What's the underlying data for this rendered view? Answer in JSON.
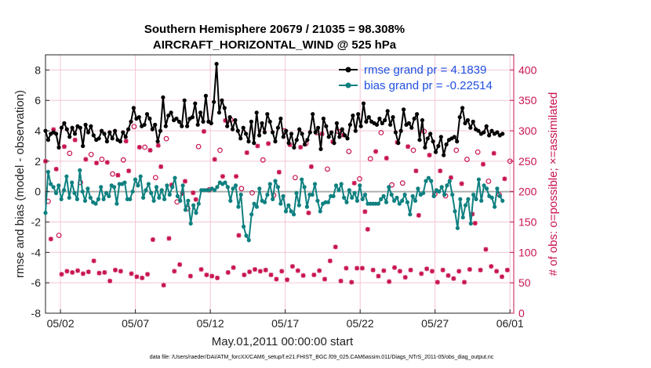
{
  "chart_data": {
    "type": "line",
    "title": "Southern Hemisphere 20679 / 21035 = 98.308%",
    "subtitle": "AIRCRAFT_HORIZONTAL_WIND @ 525 hPa",
    "xlabel": "May.01,2011 00:00:00 start",
    "ylabel": "rmse and bias (model - observation)",
    "y2label": "# of obs: o=possible; ×=assimilated",
    "footnote": "data file: /Users/raeder/DAI/ATM_forcXX/CAM6_setup/f.e21.FHIST_BGC.f09_025.CAM6assim.011/Diags_NTrS_2011-05/obs_diag_output.nc",
    "x_range": [
      0.5,
      31.75
    ],
    "ylim": [
      -8,
      9
    ],
    "y2lim": [
      0,
      425
    ],
    "x_ticks": [
      1.5,
      6.5,
      11.5,
      16.5,
      21.5,
      26.5,
      31.5
    ],
    "x_tick_labels": [
      "05/02",
      "05/07",
      "05/12",
      "05/17",
      "05/22",
      "05/27",
      "06/01"
    ],
    "y_ticks": [
      -8,
      -6,
      -4,
      -2,
      0,
      2,
      4,
      6,
      8
    ],
    "y_tick_labels": [
      "-8",
      "-6",
      "-4",
      "-2",
      "0",
      "2",
      "4",
      "6",
      "8"
    ],
    "y2_ticks": [
      0,
      50,
      100,
      150,
      200,
      250,
      300,
      350,
      400
    ],
    "y2_tick_labels": [
      "0",
      "50",
      "100",
      "150",
      "200",
      "250",
      "300",
      "350",
      "400"
    ],
    "legend_position": "top-right",
    "colors": {
      "rmse": "#000000",
      "bias": "#0f8080",
      "obs": "#c8144f",
      "zero": "#b0b0b0",
      "grid": "#f3c4d4",
      "legend_text": "#1f4fe0"
    },
    "series": [
      {
        "name": "rmse grand pr = 4.1839",
        "key": "rmse",
        "values": [
          4.0,
          3.4,
          3.8,
          3.9,
          3.8,
          2.9,
          4.2,
          4.5,
          4.1,
          3.6,
          4.2,
          3.8,
          4.3,
          4.2,
          3.0,
          4.4,
          3.9,
          4.3,
          3.7,
          3.4,
          3.5,
          4.0,
          3.8,
          3.3,
          3.9,
          3.5,
          4.0,
          3.4,
          3.3,
          3.9,
          3.6,
          4.1,
          4.6,
          5.5,
          4.8,
          4.9,
          4.3,
          4.4,
          5.1,
          4.8,
          4.1,
          4.4,
          3.3,
          4.0,
          6.2,
          4.3,
          5.0,
          5.2,
          4.7,
          4.8,
          4.6,
          4.3,
          6.0,
          4.3,
          4.8,
          4.9,
          5.8,
          4.4,
          5.2,
          4.6,
          6.3,
          4.6,
          4.5,
          5.9,
          8.4,
          5.2,
          6.0,
          5.5,
          4.3,
          4.9,
          4.1,
          4.7,
          4.0,
          3.5,
          4.2,
          3.8,
          3.3,
          4.6,
          3.2,
          5.2,
          3.7,
          4.5,
          3.9,
          5.1,
          4.6,
          3.9,
          3.3,
          4.2,
          4.8,
          3.6,
          4.0,
          3.2,
          3.8,
          2.9,
          3.4,
          4.1,
          3.8,
          3.1,
          3.4,
          3.9,
          5.1,
          3.9,
          4.2,
          2.8,
          4.8,
          4.3,
          3.6,
          3.9,
          3.2,
          4.5,
          3.6,
          4.1,
          3.7,
          3.5,
          4.4,
          5.0,
          4.0,
          5.1,
          4.3,
          5.8,
          4.6,
          4.9,
          4.6,
          4.5,
          4.4,
          4.8,
          4.5,
          4.7,
          5.3,
          4.4,
          4.9,
          3.9,
          3.2,
          4.0,
          5.4,
          4.4,
          4.5,
          4.2,
          4.8,
          5.1,
          3.4,
          4.7,
          2.9,
          3.5,
          3.8,
          3.3,
          2.6,
          3.0,
          3.6,
          2.4,
          3.1,
          3.4,
          3.5,
          3.6,
          3.3,
          4.9,
          5.5,
          4.5,
          4.7,
          4.2,
          4.6,
          4.1,
          4.0,
          3.8,
          3.9,
          4.3,
          3.7,
          4.0,
          3.8,
          3.9,
          3.7,
          3.8
        ]
      },
      {
        "name": "bias grand pr = -0.22514",
        "key": "bias",
        "values": [
          -1.4,
          1.3,
          0.5,
          0.3,
          -0.1,
          0.4,
          -0.5,
          0.1,
          1.0,
          -0.4,
          0.6,
          -0.1,
          -0.5,
          1.4,
          0.0,
          -0.6,
          0.2,
          -0.4,
          -0.7,
          -0.8,
          -0.5,
          0.3,
          -0.5,
          -0.1,
          -0.3,
          0.4,
          0.3,
          -0.8,
          0.5,
          0.5,
          0.6,
          -0.5,
          -0.5,
          0.0,
          0.8,
          0.4,
          1.0,
          -0.4,
          0.1,
          0.5,
          -0.1,
          -0.6,
          0.3,
          -0.4,
          0.1,
          -0.5,
          0.4,
          -0.2,
          0.3,
          0.9,
          -0.3,
          -0.6,
          0.4,
          -1.2,
          -0.6,
          -2.1,
          -0.9,
          -1.4,
          -0.8,
          0.1,
          0.1,
          0.1,
          0.1,
          0.2,
          0.1,
          0.3,
          0.6,
          0.5,
          0.6,
          0.3,
          -0.6,
          0.2,
          0.4,
          -1.0,
          -0.2,
          -2.3,
          -2.9,
          -3.2,
          -1.5,
          -0.8,
          -1.0,
          0.2,
          -0.6,
          -0.7,
          -0.2,
          0.5,
          -0.5,
          0.7,
          0.3,
          -0.8,
          -0.3,
          -1.3,
          -0.9,
          -1.3,
          -1.5,
          -0.1,
          -0.9,
          0.8,
          0.3,
          -1.0,
          -0.2,
          -0.2,
          0.5,
          -0.6,
          -1.3,
          -0.8,
          -0.7,
          -0.7,
          -0.3,
          -0.3,
          0.4,
          0.1,
          0.5,
          -0.4,
          -0.7,
          0.1,
          -0.4,
          -0.1,
          -0.6,
          0.4,
          -0.5,
          -0.2,
          -0.8,
          -0.8,
          -0.8,
          -0.8,
          -0.8,
          -0.5,
          -0.3,
          -0.7,
          0.3,
          -0.2,
          -0.6,
          -0.4,
          -0.8,
          -0.6,
          -0.2,
          -0.7,
          -1.5,
          -0.3,
          -0.6,
          0.2,
          -0.2,
          -0.1,
          0.7,
          0.9,
          0.7,
          -0.3,
          0.1,
          0.0,
          0.3,
          -0.2,
          0.4,
          0.7,
          -0.2,
          -1.3,
          -2.4,
          -0.5,
          -1.7,
          -0.9,
          -0.5,
          -2.1,
          -0.2,
          -0.5,
          0.8,
          -0.6,
          0.4,
          0.2,
          -0.3,
          -0.4,
          -1.0,
          0.2,
          -0.3,
          -0.6
        ]
      }
    ],
    "possible_obs": [
      250,
      184,
      122,
      302,
      237,
      128,
      64,
      274,
      69,
      263,
      67,
      285,
      70,
      215,
      65,
      253,
      68,
      261,
      86,
      247,
      66,
      253,
      67,
      248,
      53,
      229,
      71,
      227,
      69,
      252,
      283,
      234,
      65,
      307,
      60,
      273,
      58,
      273,
      64,
      268,
      121,
      223,
      276,
      241,
      46,
      287,
      123,
      211,
      69,
      183,
      80,
      197,
      217,
      172,
      61,
      198,
      187,
      274,
      72,
      299,
      63,
      203,
      61,
      253,
      58,
      268,
      225,
      317,
      67,
      318,
      75,
      225,
      128,
      205,
      63,
      264,
      68,
      198,
      72,
      275,
      69,
      252,
      71,
      279,
      63,
      194,
      56,
      232,
      69,
      300,
      55,
      277,
      77,
      223,
      70,
      273,
      62,
      279,
      165,
      241,
      63,
      297,
      70,
      295,
      56,
      237,
      86,
      282,
      109,
      299,
      53,
      293,
      74,
      266,
      51,
      214,
      74,
      221,
      74,
      167,
      138,
      254,
      71,
      266,
      61,
      297,
      70,
      255,
      52,
      211,
      75,
      281,
      69,
      214,
      59,
      274,
      71,
      268,
      234,
      161,
      65,
      299,
      73,
      260,
      69,
      196,
      51,
      234,
      71,
      193,
      62,
      223,
      57,
      268,
      69,
      213,
      51,
      253,
      72,
      163,
      148,
      265,
      71,
      245,
      105,
      217,
      77,
      263,
      69,
      195,
      60,
      221,
      71,
      250
    ]
  },
  "legend": {
    "rmse_label": "rmse grand pr = 4.1839",
    "bias_label": "bias grand pr = -0.22514"
  }
}
